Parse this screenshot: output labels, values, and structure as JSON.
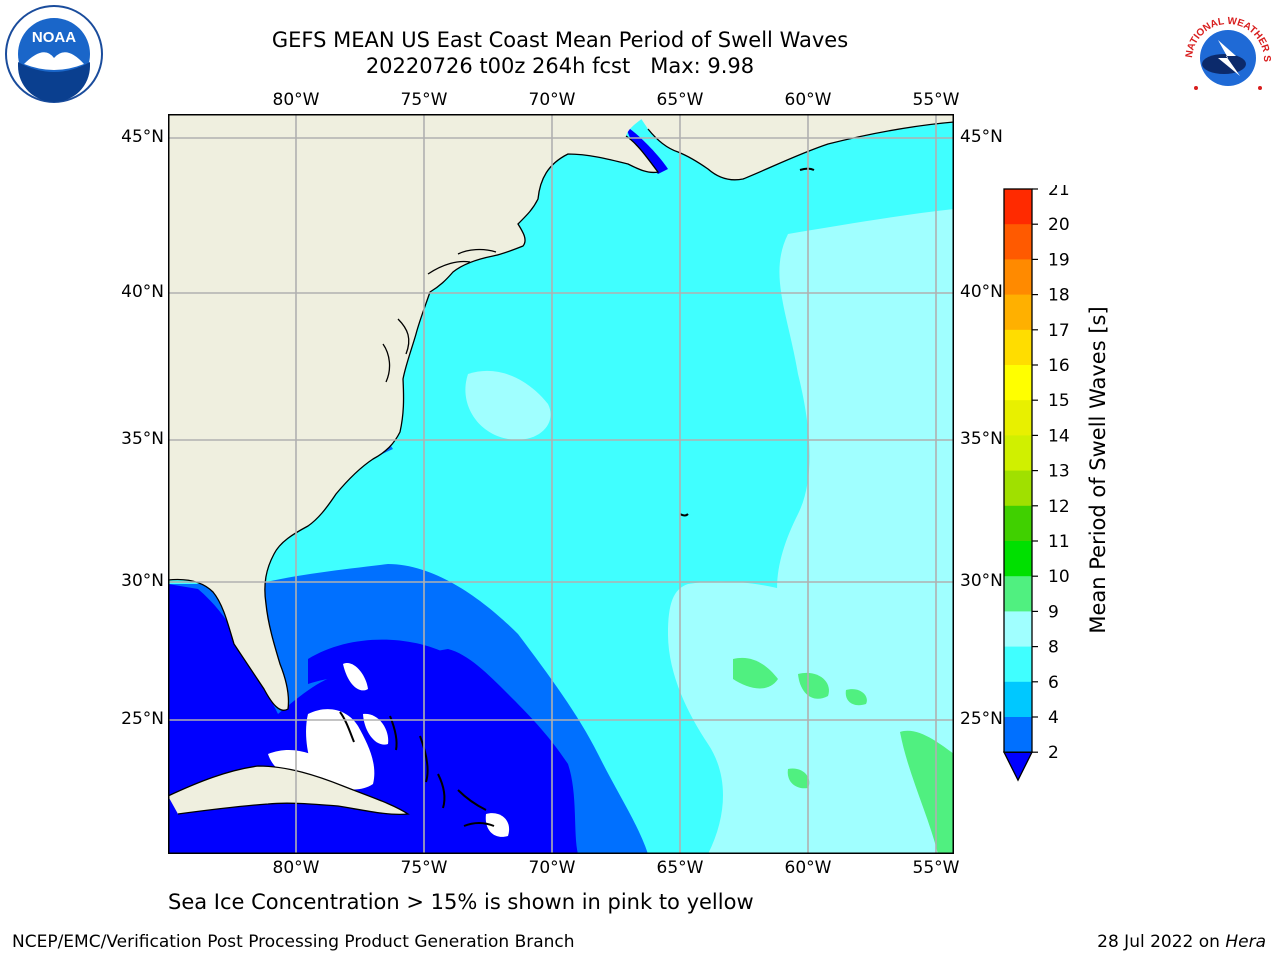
{
  "title": "GEFS MEAN US East Coast Mean Period of Swell Waves",
  "subtitle": "20220726 t00z 264h fcst   Max: 9.98",
  "lon_ticks": [
    "80°W",
    "75°W",
    "70°W",
    "65°W",
    "60°W",
    "55°W"
  ],
  "lat_ticks": [
    "45°N",
    "40°N",
    "35°N",
    "30°N",
    "25°N"
  ],
  "colorbar": {
    "label": "Mean Period of Swell Waves [s]",
    "ticks": [
      "2",
      "4",
      "6",
      "8",
      "9",
      "10",
      "11",
      "12",
      "13",
      "14",
      "15",
      "16",
      "17",
      "18",
      "19",
      "20",
      "21"
    ],
    "colors": [
      "#0070ff",
      "#00c8ff",
      "#40ffff",
      "#a0ffff",
      "#50f080",
      "#00e000",
      "#40d000",
      "#a0e000",
      "#d0f000",
      "#e8f000",
      "#ffff00",
      "#ffdd00",
      "#ffb000",
      "#ff8a00",
      "#ff5a00",
      "#ff2a00"
    ],
    "under_color": "#0000ff"
  },
  "note": "Sea Ice Concentration > 15% is shown in pink to yellow",
  "credit": "NCEP/EMC/Verification Post Processing Product Generation Branch",
  "date_stamp": "28 Jul 2022 on ",
  "date_host": "Hera",
  "logos": {
    "left": "NOAA",
    "right": "NATIONAL WEATHER SERVICE"
  },
  "colors": {
    "land": "#efefdf",
    "grid": "#b0b0b0",
    "coastline": "#000000"
  }
}
